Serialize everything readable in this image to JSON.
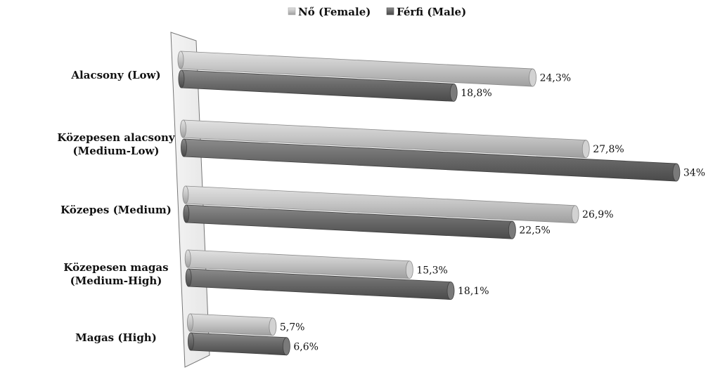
{
  "chart_data": {
    "type": "bar",
    "orientation": "horizontal",
    "categories": [
      [
        "Alacsony (Low)"
      ],
      [
        "Közepesen alacsony",
        "(Medium-Low)"
      ],
      [
        "Közepes (Medium)"
      ],
      [
        "Közepesen magas",
        "(Medium-High)"
      ],
      [
        "Magas (High)"
      ]
    ],
    "series": [
      {
        "name": "Nő (Female)",
        "color": "#bdbdbd",
        "values": [
          24.3,
          27.8,
          26.9,
          15.3,
          5.7
        ],
        "labels": [
          "24,3%",
          "27,8%",
          "26,9%",
          "15,3%",
          "5,7%"
        ]
      },
      {
        "name": "Férfi (Male)",
        "color": "#6a6a6a",
        "values": [
          18.8,
          34,
          22.5,
          18.1,
          6.6
        ],
        "labels": [
          "18,8%",
          "34%",
          "22,5%",
          "18,1%",
          "6,6%"
        ]
      }
    ],
    "legend_position": "top",
    "grid": false,
    "xlim": [
      0,
      34
    ]
  }
}
